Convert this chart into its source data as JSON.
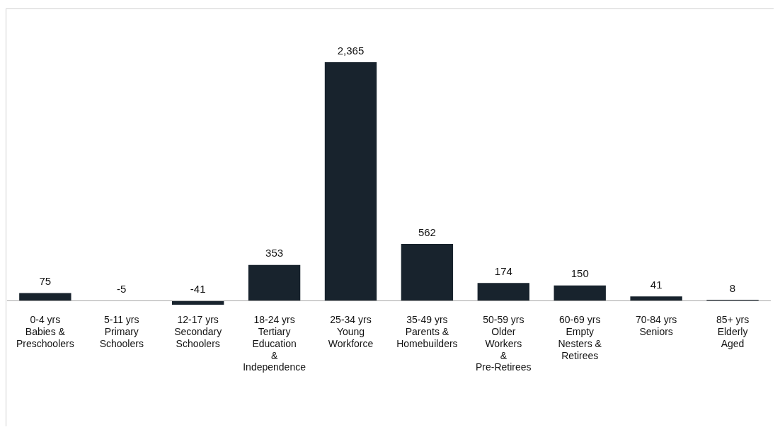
{
  "chart_data": {
    "type": "bar",
    "categories": [
      "0-4 yrs\nBabies &\nPreschoolers",
      "5-11 yrs\nPrimary\nSchoolers",
      "12-17 yrs\nSecondary\nSchoolers",
      "18-24 yrs\nTertiary\nEducation\n&\nIndependence",
      "25-34 yrs\nYoung\nWorkforce",
      "35-49 yrs\nParents &\nHomebuilders",
      "50-59 yrs\nOlder\nWorkers\n&\nPre-Retirees",
      "60-69 yrs\nEmpty\nNesters &\nRetirees",
      "70-84 yrs\nSeniors",
      "85+ yrs\nElderly\nAged"
    ],
    "values": [
      75,
      -5,
      -41,
      353,
      2365,
      562,
      174,
      150,
      41,
      8
    ],
    "color": "#18232d",
    "value_labels": [
      "75",
      "-5",
      "-41",
      "353",
      "2,365",
      "562",
      "174",
      "150",
      "41",
      "8"
    ],
    "grid": false,
    "legend": false
  }
}
